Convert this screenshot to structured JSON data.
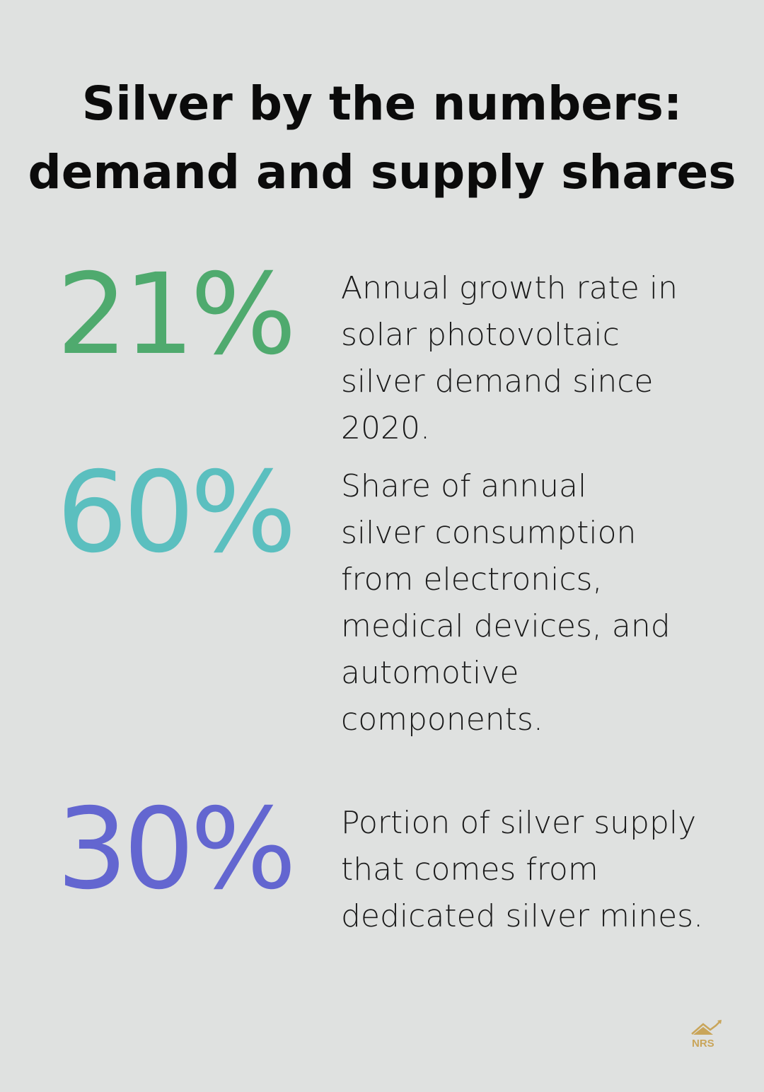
{
  "title": {
    "line1": "Silver by the numbers:",
    "line2": "demand and supply shares"
  },
  "stats": [
    {
      "value": "21%",
      "color": "#4faa6e",
      "description": "Annual growth rate in solar photovoltaic silver demand since 2020."
    },
    {
      "value": "60%",
      "color": "#5bbfbf",
      "description": "Share of annual silver consumption from electronics, medical devices, and automotive components."
    },
    {
      "value": "30%",
      "color": "#6366d0",
      "description": "Portion of silver supply that comes from dedicated silver mines."
    }
  ],
  "logo": {
    "text": "NRS",
    "color": "#c9a55a"
  }
}
